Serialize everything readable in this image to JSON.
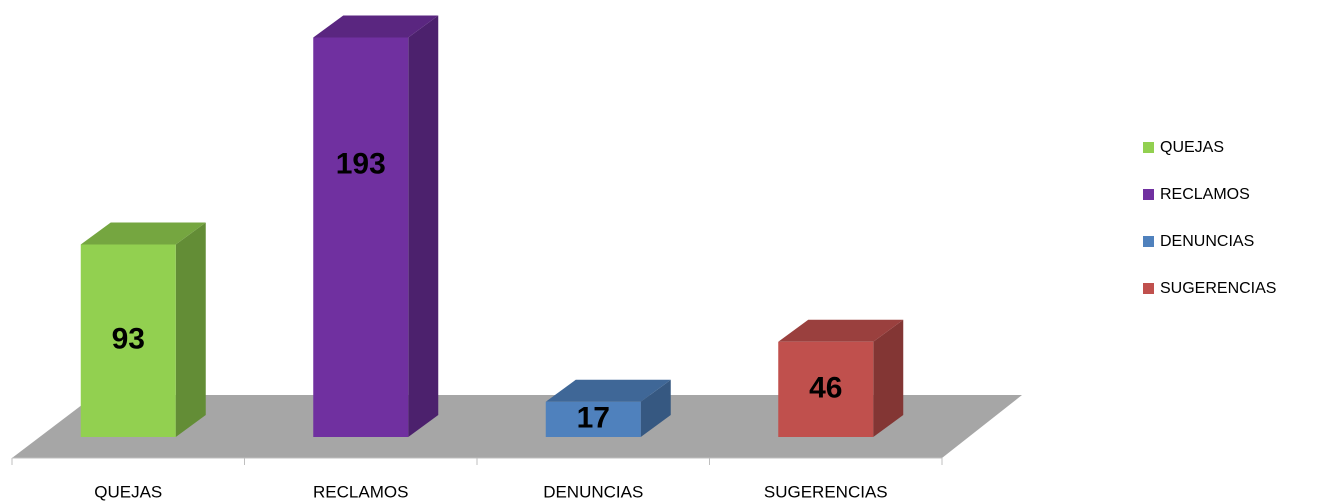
{
  "chart_data": {
    "type": "bar3d",
    "categories": [
      "QUEJAS",
      "RECLAMOS",
      "DENUNCIAS",
      "SUGERENCIAS"
    ],
    "values": [
      93,
      193,
      17,
      46
    ],
    "colors": [
      "#92d050",
      "#7030a0",
      "#4f81bd",
      "#c0504d"
    ],
    "ylim": [
      0,
      200
    ],
    "legend": "right"
  }
}
